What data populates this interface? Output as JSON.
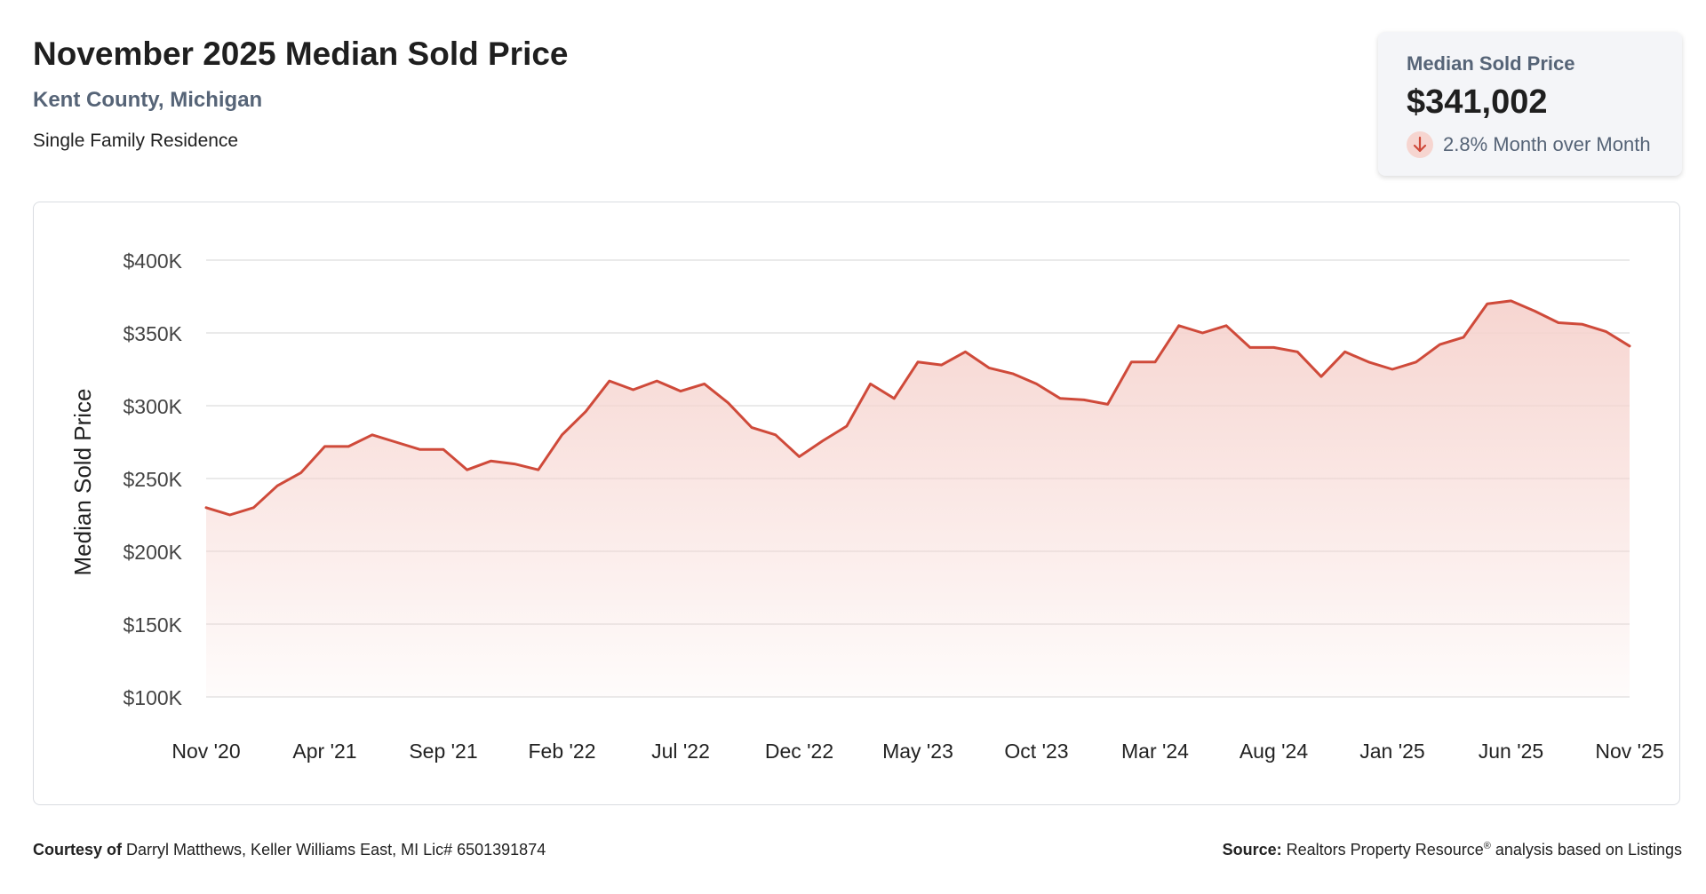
{
  "header": {
    "title": "November 2025 Median Sold Price",
    "subtitle": "Kent County, Michigan",
    "property_type": "Single Family Residence"
  },
  "stat": {
    "label": "Median Sold Price",
    "value": "$341,002",
    "change": "2.8% Month over Month",
    "direction_icon": "arrow-down-icon"
  },
  "colors": {
    "line": "#cf4a3a",
    "fill_top": "#f6d3ce",
    "grid": "#e3e3e3",
    "badge": "#f6d5d0"
  },
  "footer": {
    "courtesy_label": "Courtesy of",
    "courtesy_text": "Darryl Matthews, Keller Williams East, MI Lic# 6501391874",
    "source_label": "Source:",
    "source_text_a": "Realtors Property Resource",
    "source_sup": "®",
    "source_text_b": "analysis based on Listings"
  },
  "chart_data": {
    "type": "area",
    "ylabel": "Median Sold Price",
    "xlabel": "",
    "ylim": [
      100000,
      400000
    ],
    "yticks": [
      100000,
      150000,
      200000,
      250000,
      300000,
      350000,
      400000
    ],
    "ytick_labels": [
      "$100K",
      "$150K",
      "$200K",
      "$250K",
      "$300K",
      "$350K",
      "$400K"
    ],
    "xtick_labels": [
      "Nov '20",
      "Apr '21",
      "Sep '21",
      "Feb '22",
      "Jul '22",
      "Dec '22",
      "May '23",
      "Oct '23",
      "Mar '24",
      "Aug '24",
      "Jan '25",
      "Jun '25",
      "Nov '25"
    ],
    "xtick_every": 5,
    "grid": true,
    "series": [
      {
        "values": [
          230000,
          225000,
          230000,
          245000,
          254000,
          272000,
          272000,
          280000,
          275000,
          270000,
          270000,
          256000,
          262000,
          260000,
          256000,
          280000,
          296000,
          317000,
          311000,
          317000,
          310000,
          315000,
          302000,
          285000,
          280000,
          265000,
          276000,
          286000,
          315000,
          305000,
          330000,
          328000,
          337000,
          326000,
          322000,
          315000,
          305000,
          304000,
          301000,
          330000,
          330000,
          355000,
          350000,
          355000,
          340000,
          340000,
          337000,
          320000,
          337000,
          330000,
          325000,
          330000,
          342000,
          347000,
          370000,
          372000,
          365000,
          357000,
          356000,
          351000,
          341002
        ]
      }
    ]
  }
}
